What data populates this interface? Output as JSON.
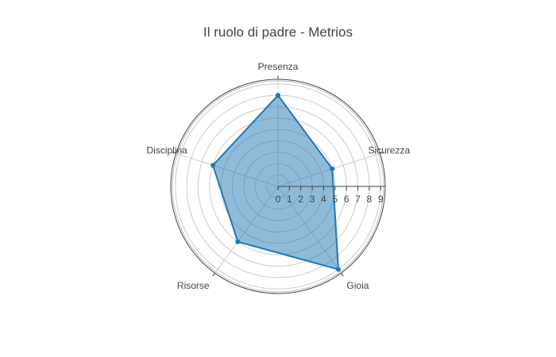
{
  "chart_data": {
    "type": "radar",
    "title": "Il ruolo di padre - Metrios",
    "categories": [
      "Presenza",
      "Sicurezza",
      "Gioia",
      "Risorse",
      "Disciplina"
    ],
    "series": [
      {
        "name": "",
        "values": [
          8,
          5,
          9,
          6,
          6
        ]
      }
    ],
    "radial_range": [
      0,
      9.4
    ],
    "radial_ticks": [
      "0",
      "1",
      "2",
      "3",
      "4",
      "5",
      "6",
      "7",
      "8",
      "9"
    ],
    "grid": true,
    "colors": {
      "line": "#1f77b4",
      "fill": "#1f77b4",
      "grid": "#cccccc",
      "outer": "#444444"
    }
  }
}
